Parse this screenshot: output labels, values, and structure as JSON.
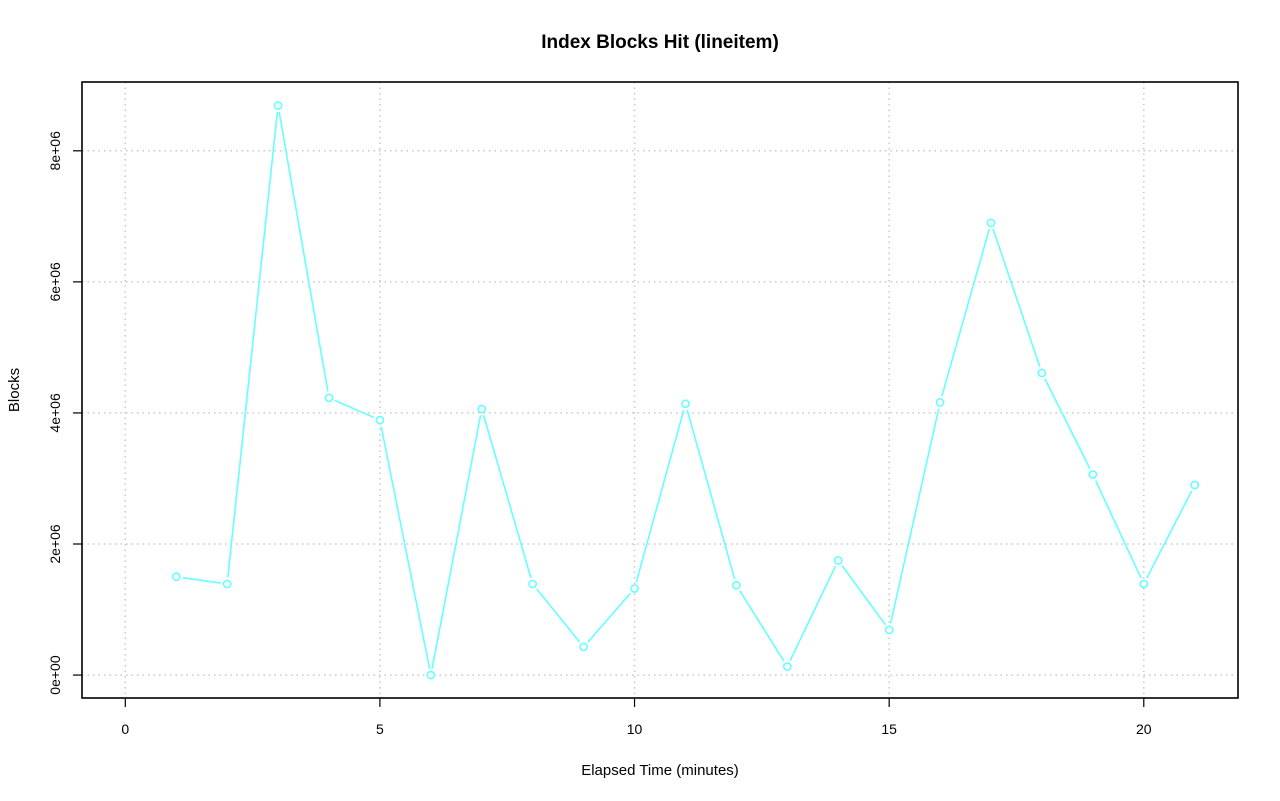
{
  "chart_data": {
    "type": "line",
    "title": "Index Blocks Hit (lineitem)",
    "xlabel": "Elapsed Time (minutes)",
    "ylabel": "Blocks",
    "xlim": [
      -0.85,
      21.85
    ],
    "ylim": [
      -350000,
      9050000
    ],
    "x_ticks": [
      0,
      5,
      10,
      15,
      20
    ],
    "x_tick_labels": [
      "0",
      "5",
      "10",
      "15",
      "20"
    ],
    "y_ticks": [
      0,
      2000000,
      4000000,
      6000000,
      8000000
    ],
    "y_tick_labels": [
      "0e+00",
      "2e+06",
      "4e+06",
      "6e+06",
      "8e+06"
    ],
    "grid": true,
    "series": [
      {
        "color": "#66ffff",
        "x": [
          1,
          2,
          3,
          4,
          5,
          6,
          7,
          8,
          9,
          10,
          11,
          12,
          13,
          14,
          15,
          16,
          17,
          18,
          19,
          20,
          21
        ],
        "values": [
          1500000,
          1390000,
          8690000,
          4230000,
          3890000,
          0,
          4060000,
          1390000,
          430000,
          1320000,
          4140000,
          1370000,
          130000,
          1750000,
          690000,
          4160000,
          6900000,
          4610000,
          3060000,
          1390000,
          2900000
        ]
      }
    ]
  }
}
